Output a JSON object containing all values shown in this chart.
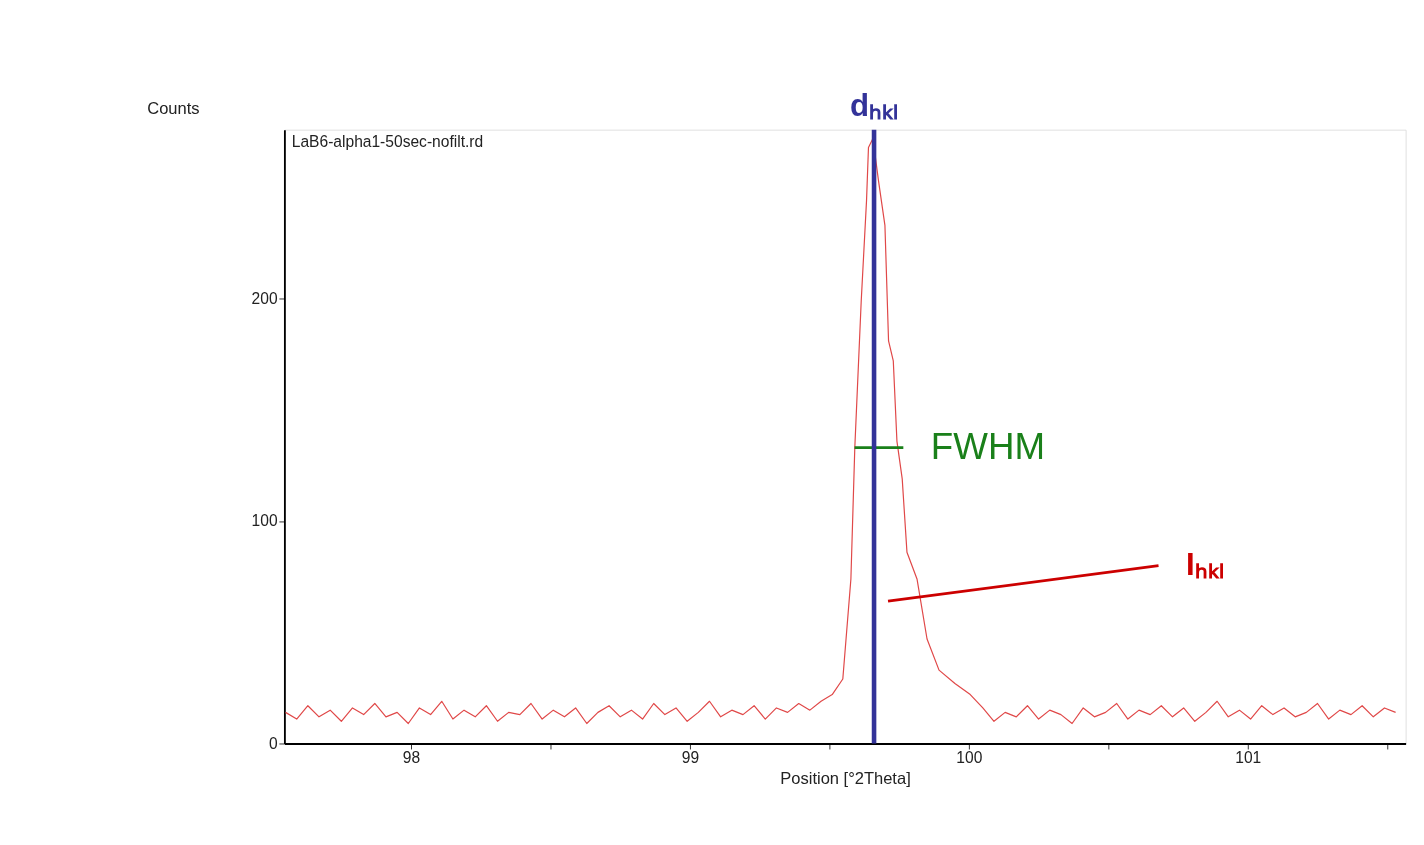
{
  "chart_data": {
    "type": "line",
    "xlabel": "Position [°2Theta]",
    "ylabel": "Counts",
    "xlim": [
      97.546,
      101.566
    ],
    "ylim": [
      0,
      276
    ],
    "xticks": [
      98,
      {
        "value": 98.5,
        "label": null
      },
      99,
      {
        "value": 99.5,
        "label": null
      },
      100,
      {
        "value": 100.5,
        "label": null
      },
      101,
      {
        "value": 101.5,
        "label": null
      }
    ],
    "yticks": [
      0,
      100,
      200
    ],
    "grid": false,
    "legend": false,
    "marker": "none",
    "line_style": "solid",
    "annotations": [
      "LaB6-alpha1-50sec-nofilt.rd"
    ],
    "ref_lines": [
      {
        "axis": "x",
        "value": 99.66,
        "label": "dₕₖₗ",
        "color": "#333399"
      }
    ],
    "series": [
      {
        "color": "#e04848",
        "x": [
          97.55,
          97.59,
          97.63,
          97.67,
          97.71,
          97.75,
          97.79,
          97.83,
          97.87,
          97.91,
          97.95,
          97.99,
          98.03,
          98.07,
          98.11,
          98.15,
          98.19,
          98.23,
          98.27,
          98.31,
          98.35,
          98.39,
          98.43,
          98.47,
          98.51,
          98.55,
          98.59,
          98.63,
          98.67,
          98.71,
          98.75,
          98.79,
          98.83,
          98.87,
          98.91,
          98.95,
          98.99,
          99.03,
          99.07,
          99.11,
          99.15,
          99.19,
          99.23,
          99.27,
          99.31,
          99.35,
          99.39,
          99.43,
          99.47,
          99.51,
          99.548,
          99.577,
          99.591,
          99.614,
          99.633,
          99.64,
          99.656,
          99.676,
          99.699,
          99.712,
          99.729,
          99.742,
          99.761,
          99.778,
          99.814,
          99.85,
          99.893,
          99.95,
          100.005,
          100.05,
          100.09,
          100.13,
          100.17,
          100.21,
          100.25,
          100.29,
          100.33,
          100.37,
          100.41,
          100.45,
          100.49,
          100.53,
          100.57,
          100.61,
          100.65,
          100.69,
          100.73,
          100.77,
          100.81,
          100.85,
          100.89,
          100.93,
          100.97,
          101.01,
          101.05,
          101.09,
          101.13,
          101.17,
          101.21,
          101.25,
          101.29,
          101.33,
          101.37,
          101.41,
          101.45,
          101.49,
          101.53
        ],
        "values": [
          14,
          11,
          17,
          12,
          15,
          10,
          16,
          13,
          18,
          12,
          14,
          9,
          16,
          13,
          19,
          11,
          15,
          12,
          17,
          10,
          14,
          13,
          18,
          11,
          15,
          12,
          16,
          9,
          14,
          17,
          12,
          15,
          11,
          18,
          13,
          16,
          10,
          14,
          19,
          12,
          15,
          13,
          17,
          11,
          16,
          14,
          18,
          15,
          19,
          22,
          29,
          74,
          133,
          199,
          244,
          268,
          272,
          253,
          233,
          181,
          172,
          136,
          119,
          86,
          74,
          47,
          33,
          27,
          22,
          16,
          10,
          14,
          12,
          17,
          11,
          15,
          13,
          9,
          16,
          12,
          14,
          18,
          11,
          15,
          13,
          17,
          12,
          16,
          10,
          14,
          19,
          12,
          15,
          11,
          17,
          13,
          16,
          12,
          14,
          18,
          11,
          15,
          13,
          17,
          12,
          16,
          14
        ]
      },
      {
        "type": "line",
        "name": "FWHM",
        "color": "#1a801a",
        "x": [
          99.59,
          99.765
        ],
        "values": [
          133,
          133
        ]
      },
      {
        "type": "line",
        "name": "Iₕₖₗ",
        "color": "#cc0000",
        "x": [
          99.71,
          100.68
        ],
        "values": [
          64,
          80
        ]
      }
    ]
  }
}
